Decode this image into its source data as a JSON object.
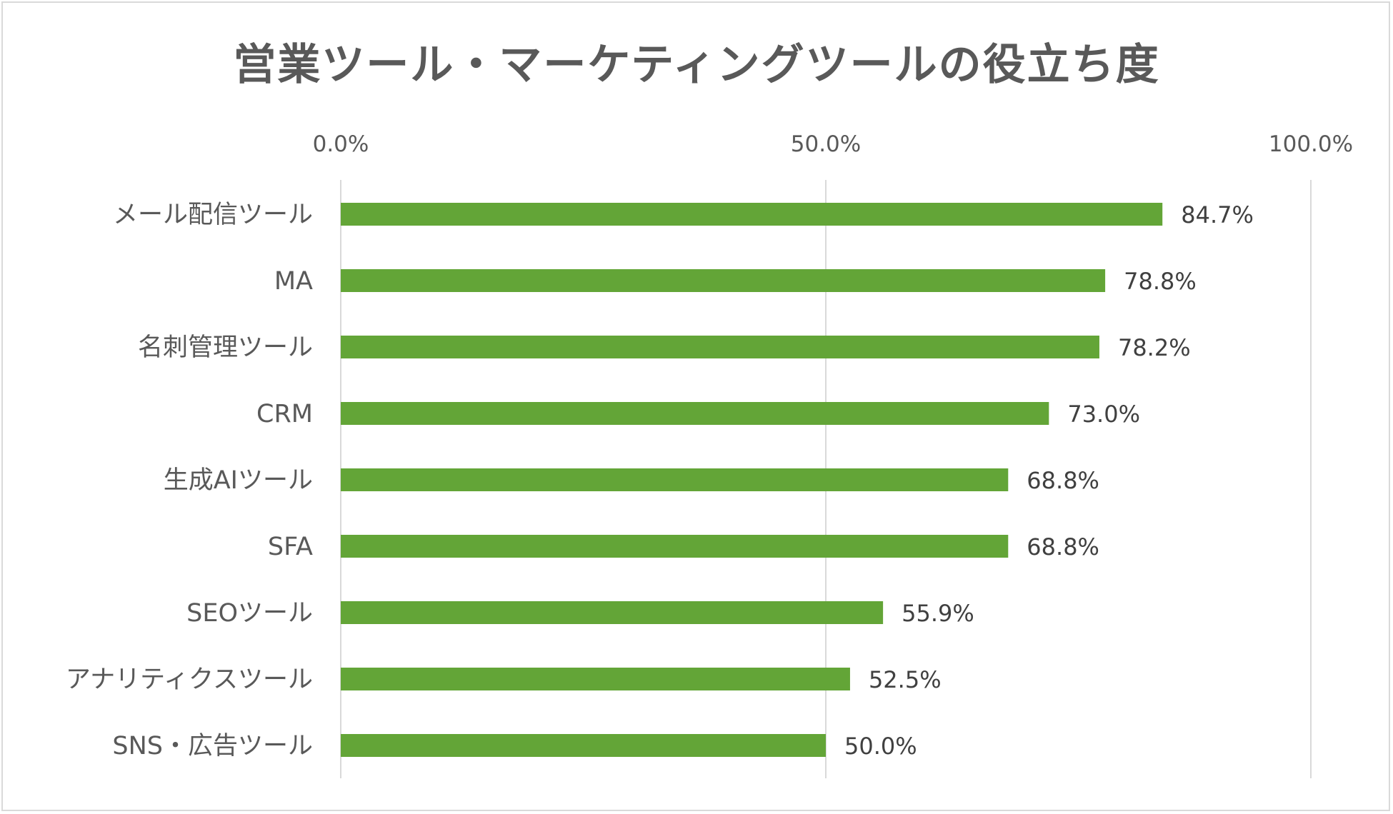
{
  "chart_data": {
    "type": "bar",
    "orientation": "horizontal",
    "title": "営業ツール・マーケティングツールの役立ち度",
    "categories": [
      "メール配信ツール",
      "MA",
      "名刺管理ツール",
      "CRM",
      "生成AIツール",
      "SFA",
      "SEOツール",
      "アナリティクスツール",
      "SNS・広告ツール"
    ],
    "values": [
      84.7,
      78.8,
      78.2,
      73.0,
      68.8,
      68.8,
      55.9,
      52.5,
      50.0
    ],
    "data_labels": [
      "84.7%",
      "78.8%",
      "78.2%",
      "73.0%",
      "68.8%",
      "68.8%",
      "55.9%",
      "52.5%",
      "50.0%"
    ],
    "x_ticks": [
      "0.0%",
      "50.0%",
      "100.0%"
    ],
    "x_tick_values": [
      0,
      50,
      100
    ],
    "xlim": [
      0,
      100
    ],
    "x_axis_position": "top",
    "grid": true,
    "legend": "none",
    "bar_color": "#63a537",
    "grid_color": "#d9d9d9",
    "text_color": "#595959"
  }
}
